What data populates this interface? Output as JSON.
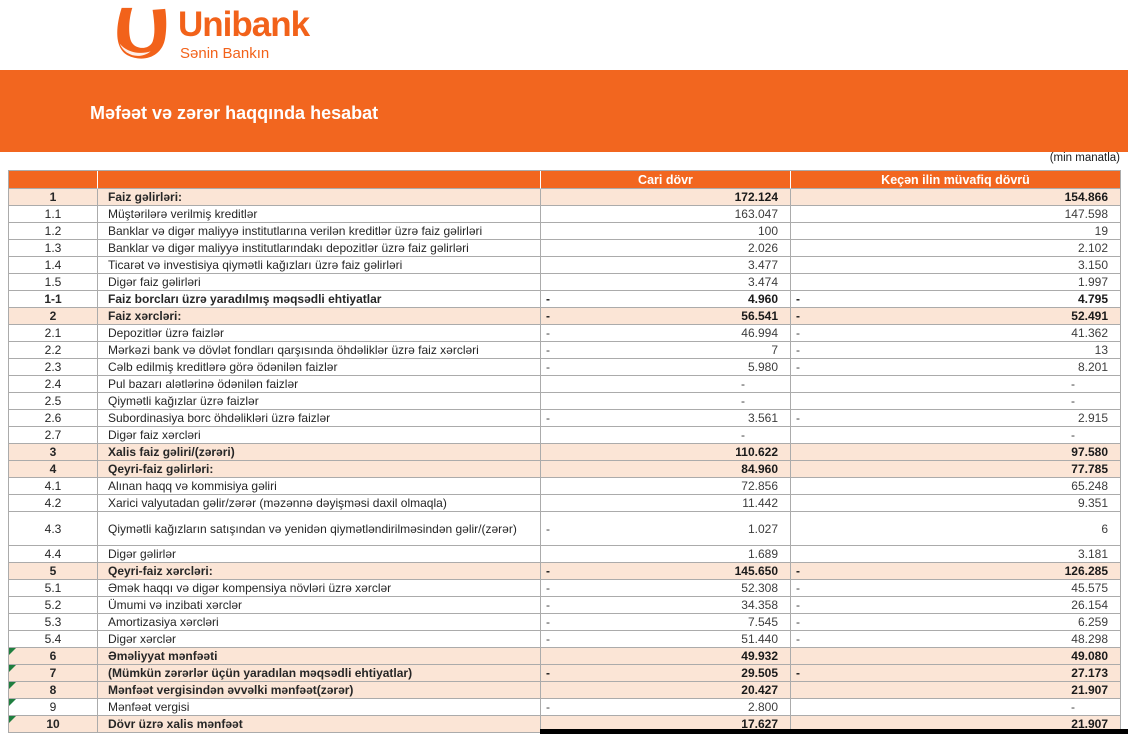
{
  "logo": {
    "brand": "Unibank",
    "tagline": "Sənin Bankın"
  },
  "banner": {
    "title": "Məfəət və zərər haqqında hesabat"
  },
  "units_note": "(min manatla)",
  "colors": {
    "accent": "#F2661F",
    "highlight": "#FBE5D6",
    "marker_green": "#1F7E3F",
    "border": "#ABABAB"
  },
  "table": {
    "headers": {
      "number": "",
      "label": "",
      "current": "Cari dövr",
      "previous": "Keçən ilin müvafiq dövrü"
    },
    "rows": [
      {
        "no": "1",
        "label": "Faiz gəlirləri:",
        "cur": "172.124",
        "cur_neg": false,
        "prev": "154.866",
        "prev_neg": false,
        "bold": true,
        "hl": true,
        "mark": false,
        "wrap": false
      },
      {
        "no": "1.1",
        "label": "Müştərilərə verilmiş kreditlər",
        "cur": "163.047",
        "cur_neg": false,
        "prev": "147.598",
        "prev_neg": false,
        "bold": false,
        "hl": false,
        "mark": false,
        "wrap": false
      },
      {
        "no": "1.2",
        "label": "Banklar və digər maliyyə institutlarına verilən kreditlər üzrə faiz gəlirləri",
        "cur": "100",
        "cur_neg": false,
        "prev": "19",
        "prev_neg": false,
        "bold": false,
        "hl": false,
        "mark": false,
        "wrap": false
      },
      {
        "no": "1.3",
        "label": "Banklar və digər maliyyə institutlarındakı depozitlər üzrə faiz gəlirləri",
        "cur": "2.026",
        "cur_neg": false,
        "prev": "2.102",
        "prev_neg": false,
        "bold": false,
        "hl": false,
        "mark": false,
        "wrap": false
      },
      {
        "no": "1.4",
        "label": "Ticarət və investisiya qiymətli kağızları üzrə faiz gəlirləri",
        "cur": "3.477",
        "cur_neg": false,
        "prev": "3.150",
        "prev_neg": false,
        "bold": false,
        "hl": false,
        "mark": false,
        "wrap": false
      },
      {
        "no": "1.5",
        "label": "Digər faiz gəlirləri",
        "cur": "3.474",
        "cur_neg": false,
        "prev": "1.997",
        "prev_neg": false,
        "bold": false,
        "hl": false,
        "mark": false,
        "wrap": false
      },
      {
        "no": "1-1",
        "label": "Faiz borcları üzrə yaradılmış məqsədli ehtiyatlar",
        "cur": "4.960",
        "cur_neg": true,
        "prev": "4.795",
        "prev_neg": true,
        "bold": true,
        "hl": false,
        "mark": false,
        "wrap": false
      },
      {
        "no": "2",
        "label": "Faiz xərcləri:",
        "cur": "56.541",
        "cur_neg": true,
        "prev": "52.491",
        "prev_neg": true,
        "bold": true,
        "hl": true,
        "mark": false,
        "wrap": false
      },
      {
        "no": "2.1",
        "label": "Depozitlər üzrə faizlər",
        "cur": "46.994",
        "cur_neg": true,
        "prev": "41.362",
        "prev_neg": true,
        "bold": false,
        "hl": false,
        "mark": false,
        "wrap": false
      },
      {
        "no": "2.2",
        "label": "Mərkəzi bank və dövlət fondları qarşısında öhdəliklər üzrə faiz xərcləri",
        "cur": "7",
        "cur_neg": true,
        "prev": "13",
        "prev_neg": true,
        "bold": false,
        "hl": false,
        "mark": false,
        "wrap": false
      },
      {
        "no": "2.3",
        "label": "Cəlb edilmiş kreditlərə görə ödənilən faizlər",
        "cur": "5.980",
        "cur_neg": true,
        "prev": "8.201",
        "prev_neg": true,
        "bold": false,
        "hl": false,
        "mark": false,
        "wrap": false
      },
      {
        "no": "2.4",
        "label": "Pul bazarı alətlərinə ödənilən faizlər",
        "cur": "-",
        "cur_neg": false,
        "prev": "-",
        "prev_neg": false,
        "bold": false,
        "hl": false,
        "mark": false,
        "wrap": false
      },
      {
        "no": "2.5",
        "label": "Qiymətli kağızlar üzrə faizlər",
        "cur": "-",
        "cur_neg": false,
        "prev": "-",
        "prev_neg": false,
        "bold": false,
        "hl": false,
        "mark": false,
        "wrap": false
      },
      {
        "no": "2.6",
        "label": "Subordinasiya borc öhdəlikləri üzrə faizlər",
        "cur": "3.561",
        "cur_neg": true,
        "prev": "2.915",
        "prev_neg": true,
        "bold": false,
        "hl": false,
        "mark": false,
        "wrap": false
      },
      {
        "no": "2.7",
        "label": "Digər faiz xərcləri",
        "cur": "-",
        "cur_neg": false,
        "prev": "-",
        "prev_neg": false,
        "bold": false,
        "hl": false,
        "mark": false,
        "wrap": false
      },
      {
        "no": "3",
        "label": "Xalis faiz gəliri/(zərəri)",
        "cur": "110.622",
        "cur_neg": false,
        "prev": "97.580",
        "prev_neg": false,
        "bold": true,
        "hl": true,
        "mark": false,
        "wrap": false
      },
      {
        "no": "4",
        "label": "Qeyri-faiz gəlirləri:",
        "cur": "84.960",
        "cur_neg": false,
        "prev": "77.785",
        "prev_neg": false,
        "bold": true,
        "hl": true,
        "mark": false,
        "wrap": false
      },
      {
        "no": "4.1",
        "label": "Alınan haqq və kommisiya gəliri",
        "cur": "72.856",
        "cur_neg": false,
        "prev": "65.248",
        "prev_neg": false,
        "bold": false,
        "hl": false,
        "mark": false,
        "wrap": false
      },
      {
        "no": "4.2",
        "label": "Xarici valyutadan gəlir/zərər (məzənnə dəyişməsi daxil olmaqla)",
        "cur": "11.442",
        "cur_neg": false,
        "prev": "9.351",
        "prev_neg": false,
        "bold": false,
        "hl": false,
        "mark": false,
        "wrap": false
      },
      {
        "no": "4.3",
        "label": "Qiymətli kağızların satışından və yenidən qiymətləndirilməsindən gəlir/(zərər)",
        "cur": "1.027",
        "cur_neg": true,
        "prev": "6",
        "prev_neg": false,
        "bold": false,
        "hl": false,
        "mark": false,
        "wrap": true
      },
      {
        "no": "4.4",
        "label": "Digər gəlirlər",
        "cur": "1.689",
        "cur_neg": false,
        "prev": "3.181",
        "prev_neg": false,
        "bold": false,
        "hl": false,
        "mark": false,
        "wrap": false
      },
      {
        "no": "5",
        "label": "Qeyri-faiz xərcləri:",
        "cur": "145.650",
        "cur_neg": true,
        "prev": "126.285",
        "prev_neg": true,
        "bold": true,
        "hl": true,
        "mark": false,
        "wrap": false
      },
      {
        "no": "5.1",
        "label": "Əmək haqqı və digər kompensiya növləri üzrə xərclər",
        "cur": "52.308",
        "cur_neg": true,
        "prev": "45.575",
        "prev_neg": true,
        "bold": false,
        "hl": false,
        "mark": false,
        "wrap": false
      },
      {
        "no": "5.2",
        "label": "Ümumi və inzibati xərclər",
        "cur": "34.358",
        "cur_neg": true,
        "prev": "26.154",
        "prev_neg": true,
        "bold": false,
        "hl": false,
        "mark": false,
        "wrap": false
      },
      {
        "no": "5.3",
        "label": "Amortizasiya xərcləri",
        "cur": "7.545",
        "cur_neg": true,
        "prev": "6.259",
        "prev_neg": true,
        "bold": false,
        "hl": false,
        "mark": false,
        "wrap": false
      },
      {
        "no": "5.4",
        "label": "Digər xərclər",
        "cur": "51.440",
        "cur_neg": true,
        "prev": "48.298",
        "prev_neg": true,
        "bold": false,
        "hl": false,
        "mark": false,
        "wrap": false
      },
      {
        "no": "6",
        "label": "Əməliyyat mənfəəti",
        "cur": "49.932",
        "cur_neg": false,
        "prev": "49.080",
        "prev_neg": false,
        "bold": true,
        "hl": true,
        "mark": true,
        "wrap": false
      },
      {
        "no": "7",
        "label": "(Mümkün zərərlər üçün yaradılan məqsədli ehtiyatlar)",
        "cur": "29.505",
        "cur_neg": true,
        "prev": "27.173",
        "prev_neg": true,
        "bold": true,
        "hl": true,
        "mark": true,
        "wrap": false
      },
      {
        "no": "8",
        "label": "Mənfəət vergisindən əvvəlki mənfəət(zərər)",
        "cur": "20.427",
        "cur_neg": false,
        "prev": "21.907",
        "prev_neg": false,
        "bold": true,
        "hl": true,
        "mark": true,
        "wrap": false
      },
      {
        "no": "9",
        "label": "Mənfəət vergisi",
        "cur": "2.800",
        "cur_neg": true,
        "prev": "-",
        "prev_neg": false,
        "bold": false,
        "hl": false,
        "mark": true,
        "wrap": false
      },
      {
        "no": "10",
        "label": "Dövr üzrə xalis mənfəət",
        "cur": "17.627",
        "cur_neg": false,
        "prev": "21.907",
        "prev_neg": false,
        "bold": true,
        "hl": true,
        "mark": true,
        "wrap": false
      }
    ]
  }
}
